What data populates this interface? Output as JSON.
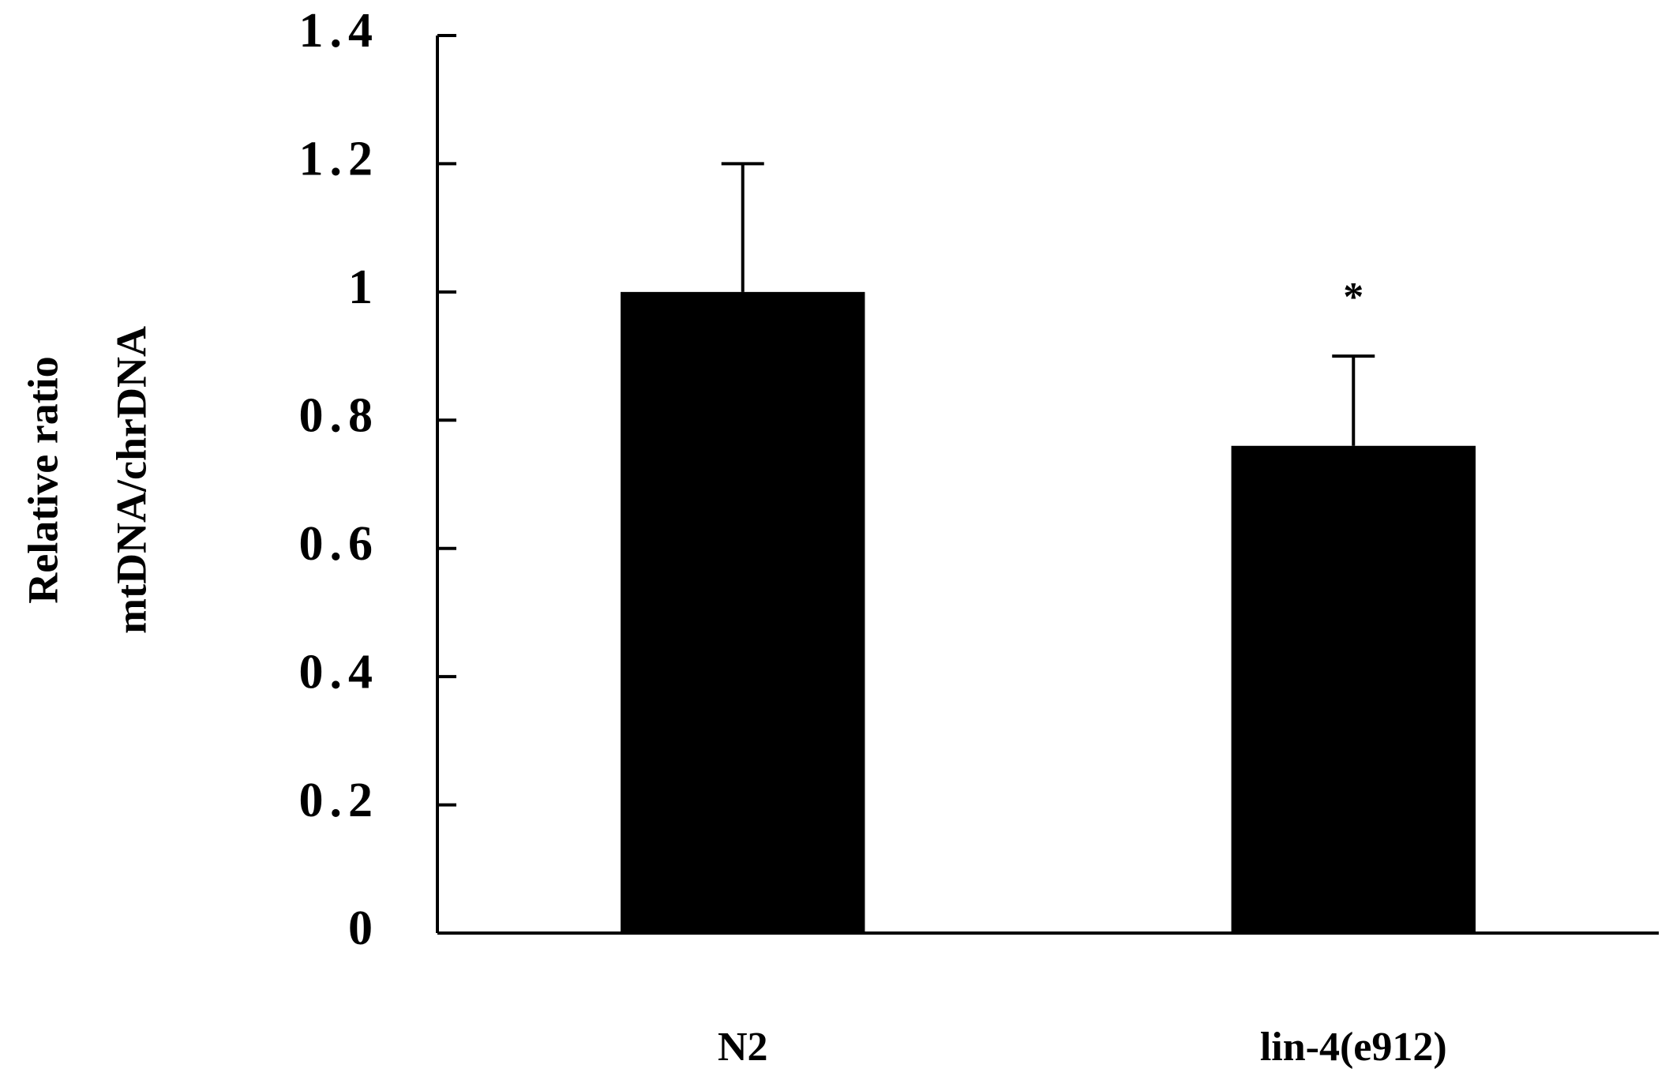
{
  "chart_data": {
    "type": "bar",
    "y_label": [
      "Relative ratio",
      "mtDNA/chrDNA"
    ],
    "categories": [
      "N2",
      "lin-4(e912)"
    ],
    "values": [
      1.0,
      0.76
    ],
    "errors": [
      0.2,
      0.14
    ],
    "significance_labels": [
      null,
      "*"
    ],
    "color": "#000000",
    "ylim": [
      0,
      1.4
    ],
    "yticks": [
      0,
      0.2,
      0.4,
      0.6,
      0.8,
      1,
      1.2,
      1.4
    ],
    "grid": false
  }
}
